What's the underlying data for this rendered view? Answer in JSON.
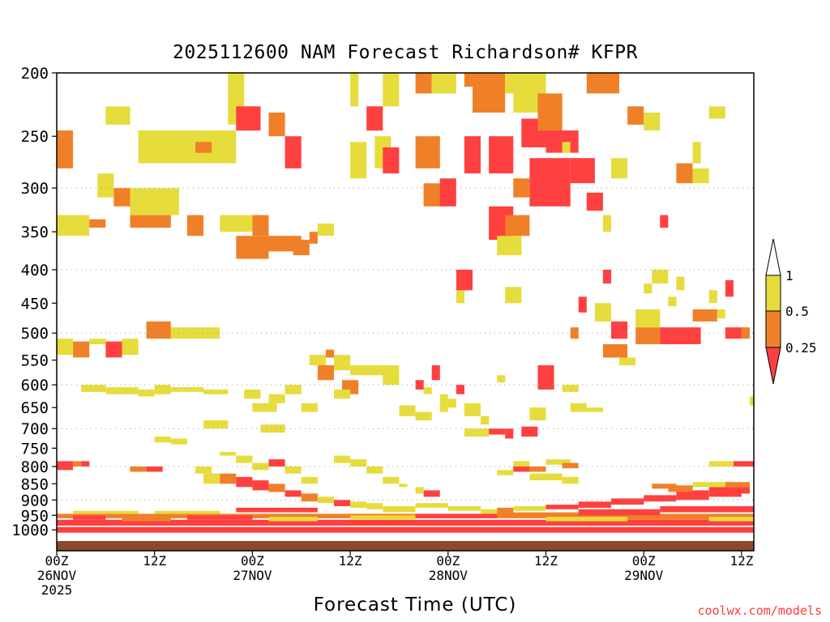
{
  "chart_data": {
    "type": "heatmap",
    "title": "2025112600 NAM Forecast Richardson# KFPR",
    "xlabel": "Forecast Time (UTC)",
    "ylabel": "",
    "y_scale": "log-pressure",
    "ylim": [
      1000,
      200
    ],
    "xlim_hours": [
      0,
      84
    ],
    "y_ticks": [
      200,
      250,
      300,
      350,
      400,
      450,
      500,
      550,
      600,
      650,
      700,
      750,
      800,
      850,
      900,
      950,
      1000
    ],
    "gridlines_at": [
      300,
      400,
      500,
      600,
      700,
      800,
      900
    ],
    "x_ticks": [
      {
        "hour": 0,
        "lines": [
          "00Z",
          "26NOV",
          "2025"
        ]
      },
      {
        "hour": 12,
        "lines": [
          "12Z"
        ]
      },
      {
        "hour": 24,
        "lines": [
          "00Z",
          "27NOV"
        ]
      },
      {
        "hour": 36,
        "lines": [
          "12Z"
        ]
      },
      {
        "hour": 48,
        "lines": [
          "00Z",
          "28NOV"
        ]
      },
      {
        "hour": 60,
        "lines": [
          "12Z"
        ]
      },
      {
        "hour": 72,
        "lines": [
          "00Z",
          "29NOV"
        ]
      },
      {
        "hour": 84,
        "lines": [
          "12Z"
        ]
      }
    ],
    "legend": {
      "placement": "right",
      "levels": [
        "0.25",
        "0.5",
        "1"
      ],
      "colors": [
        "#ff4040",
        "#f08028",
        "#e6dc3c"
      ],
      "bins": [
        "< 0.25",
        "0.25 - 0.5",
        "0.5 - 1",
        "> 1"
      ]
    },
    "colors": {
      "red": "#ff4040",
      "orange": "#f08028",
      "yellow": "#e6dc3c",
      "ground": "#8b4a2b"
    },
    "cells_note": "each cell: [start_hour, end_hour, top_hPa, bottom_hPa, class] (class r=<0.25, o=0.25-0.5, y=0.5-1)",
    "cells": [
      [
        21,
        23,
        200,
        240,
        "y"
      ],
      [
        26,
        28,
        230,
        250,
        "o"
      ],
      [
        28,
        30,
        250,
        280,
        "r"
      ],
      [
        22,
        25,
        225,
        245,
        "r"
      ],
      [
        6,
        9,
        225,
        240,
        "y"
      ],
      [
        10,
        16,
        245,
        275,
        "y"
      ],
      [
        16,
        22,
        245,
        275,
        "y"
      ],
      [
        17,
        19,
        255,
        265,
        "o"
      ],
      [
        0,
        2,
        245,
        280,
        "o"
      ],
      [
        5,
        7,
        285,
        310,
        "y"
      ],
      [
        7,
        9,
        300,
        320,
        "o"
      ],
      [
        11,
        12,
        305,
        315,
        "o"
      ],
      [
        9,
        15,
        300,
        330,
        "y"
      ],
      [
        0,
        4,
        330,
        355,
        "y"
      ],
      [
        4,
        6,
        335,
        345,
        "o"
      ],
      [
        9,
        14,
        330,
        345,
        "o"
      ],
      [
        16,
        18,
        330,
        355,
        "o"
      ],
      [
        20,
        24,
        330,
        350,
        "y"
      ],
      [
        22,
        26,
        355,
        385,
        "o"
      ],
      [
        24,
        26,
        330,
        355,
        "o"
      ],
      [
        26,
        30,
        355,
        375,
        "o"
      ],
      [
        29,
        31,
        360,
        380,
        "o"
      ],
      [
        31,
        32,
        350,
        365,
        "o"
      ],
      [
        32,
        34,
        340,
        355,
        "y"
      ],
      [
        36,
        37,
        200,
        225,
        "y"
      ],
      [
        38,
        40,
        225,
        245,
        "r"
      ],
      [
        40,
        42,
        200,
        225,
        "y"
      ],
      [
        36,
        38,
        255,
        290,
        "y"
      ],
      [
        39,
        41,
        250,
        280,
        "y"
      ],
      [
        40,
        42,
        260,
        285,
        "r"
      ],
      [
        44,
        47,
        250,
        280,
        "o"
      ],
      [
        44,
        46,
        200,
        215,
        "o"
      ],
      [
        46,
        49,
        200,
        215,
        "y"
      ],
      [
        45,
        48,
        295,
        320,
        "o"
      ],
      [
        47,
        49,
        290,
        320,
        "r"
      ],
      [
        50,
        52,
        250,
        285,
        "r"
      ],
      [
        50,
        52,
        200,
        210,
        "o"
      ],
      [
        51,
        55,
        200,
        230,
        "o"
      ],
      [
        53,
        56,
        250,
        285,
        "r"
      ],
      [
        55,
        57,
        200,
        215,
        "y"
      ],
      [
        56,
        60,
        200,
        230,
        "y"
      ],
      [
        57,
        60,
        235,
        260,
        "r"
      ],
      [
        55,
        57,
        335,
        350,
        "r"
      ],
      [
        53,
        56,
        320,
        360,
        "r"
      ],
      [
        54,
        57,
        355,
        380,
        "y"
      ],
      [
        55,
        58,
        330,
        355,
        "o"
      ],
      [
        58,
        63,
        270,
        320,
        "r"
      ],
      [
        56,
        58,
        290,
        310,
        "o"
      ],
      [
        57,
        59,
        210,
        230,
        "y"
      ],
      [
        59,
        62,
        215,
        245,
        "o"
      ],
      [
        60,
        64,
        245,
        265,
        "r"
      ],
      [
        63,
        66,
        270,
        295,
        "r"
      ],
      [
        65,
        69,
        200,
        215,
        "o"
      ],
      [
        70,
        72,
        225,
        240,
        "o"
      ],
      [
        72,
        74,
        230,
        245,
        "y"
      ],
      [
        76,
        78,
        275,
        295,
        "o"
      ],
      [
        78,
        80,
        280,
        295,
        "y"
      ],
      [
        80,
        82,
        225,
        235,
        "y"
      ],
      [
        78,
        79,
        255,
        275,
        "y"
      ],
      [
        74,
        75,
        330,
        345,
        "r"
      ],
      [
        67,
        68,
        330,
        350,
        "y"
      ],
      [
        68,
        70,
        270,
        290,
        "y"
      ],
      [
        65,
        67,
        305,
        325,
        "r"
      ],
      [
        62,
        63,
        255,
        265,
        "y"
      ],
      [
        49,
        51,
        400,
        430,
        "r"
      ],
      [
        49,
        50,
        430,
        450,
        "y"
      ],
      [
        55,
        57,
        425,
        450,
        "y"
      ],
      [
        59,
        61,
        560,
        610,
        "r"
      ],
      [
        67,
        68,
        400,
        420,
        "r"
      ],
      [
        66,
        68,
        450,
        480,
        "y"
      ],
      [
        68,
        70,
        480,
        510,
        "r"
      ],
      [
        67,
        70,
        520,
        545,
        "o"
      ],
      [
        69,
        71,
        545,
        560,
        "y"
      ],
      [
        71,
        74,
        460,
        490,
        "y"
      ],
      [
        71,
        74,
        490,
        520,
        "o"
      ],
      [
        74,
        79,
        490,
        520,
        "r"
      ],
      [
        78,
        81,
        460,
        480,
        "o"
      ],
      [
        81,
        82,
        460,
        475,
        "y"
      ],
      [
        82,
        84,
        490,
        510,
        "r"
      ],
      [
        84,
        85,
        490,
        510,
        "o"
      ],
      [
        82,
        83,
        415,
        440,
        "r"
      ],
      [
        80,
        81,
        430,
        450,
        "y"
      ],
      [
        76,
        77,
        410,
        430,
        "y"
      ],
      [
        73,
        75,
        400,
        420,
        "y"
      ],
      [
        75,
        76,
        440,
        455,
        "y"
      ],
      [
        72,
        73,
        420,
        435,
        "y"
      ],
      [
        63,
        64,
        490,
        510,
        "o"
      ],
      [
        64,
        65,
        440,
        465,
        "r"
      ],
      [
        0,
        2,
        510,
        540,
        "y"
      ],
      [
        2,
        4,
        515,
        545,
        "o"
      ],
      [
        4,
        6,
        510,
        520,
        "y"
      ],
      [
        6,
        8,
        515,
        545,
        "r"
      ],
      [
        8,
        10,
        510,
        540,
        "y"
      ],
      [
        11,
        14,
        490,
        505,
        "y"
      ],
      [
        11,
        14,
        480,
        510,
        "o"
      ],
      [
        14,
        20,
        490,
        510,
        "y"
      ],
      [
        34,
        36,
        540,
        570,
        "y"
      ],
      [
        32,
        34,
        560,
        590,
        "o"
      ],
      [
        31,
        33,
        540,
        560,
        "y"
      ],
      [
        33,
        34,
        530,
        545,
        "o"
      ],
      [
        35,
        37,
        590,
        620,
        "o"
      ],
      [
        34,
        36,
        610,
        630,
        "y"
      ],
      [
        36,
        41,
        560,
        580,
        "y"
      ],
      [
        40,
        42,
        560,
        600,
        "y"
      ],
      [
        44,
        45,
        590,
        610,
        "r"
      ],
      [
        45,
        46,
        605,
        620,
        "y"
      ],
      [
        46,
        47,
        560,
        590,
        "r"
      ],
      [
        47,
        48,
        620,
        640,
        "y"
      ],
      [
        48,
        49,
        630,
        650,
        "y"
      ],
      [
        47,
        48,
        640,
        660,
        "y"
      ],
      [
        42,
        44,
        645,
        670,
        "y"
      ],
      [
        44,
        46,
        660,
        680,
        "y"
      ],
      [
        49,
        50,
        600,
        620,
        "r"
      ],
      [
        50,
        52,
        640,
        670,
        "y"
      ],
      [
        52,
        53,
        670,
        690,
        "y"
      ],
      [
        54,
        55,
        580,
        595,
        "y"
      ],
      [
        50,
        53,
        700,
        720,
        "y"
      ],
      [
        53,
        55,
        700,
        715,
        "r"
      ],
      [
        55,
        56,
        700,
        725,
        "r"
      ],
      [
        57,
        59,
        695,
        720,
        "r"
      ],
      [
        58,
        60,
        650,
        680,
        "y"
      ],
      [
        62,
        64,
        600,
        615,
        "y"
      ],
      [
        63,
        65,
        640,
        660,
        "y"
      ],
      [
        65,
        67,
        650,
        660,
        "y"
      ],
      [
        3,
        6,
        600,
        615,
        "y"
      ],
      [
        6,
        10,
        605,
        620,
        "y"
      ],
      [
        10,
        12,
        610,
        625,
        "y"
      ],
      [
        12,
        14,
        600,
        620,
        "y"
      ],
      [
        14,
        18,
        605,
        615,
        "y"
      ],
      [
        18,
        21,
        610,
        620,
        "y"
      ],
      [
        23,
        25,
        610,
        630,
        "y"
      ],
      [
        24,
        27,
        640,
        660,
        "y"
      ],
      [
        26,
        28,
        620,
        640,
        "y"
      ],
      [
        28,
        30,
        600,
        620,
        "y"
      ],
      [
        18,
        21,
        680,
        700,
        "y"
      ],
      [
        25,
        28,
        690,
        710,
        "y"
      ],
      [
        30,
        32,
        640,
        660,
        "y"
      ],
      [
        85,
        86,
        625,
        645,
        "y"
      ],
      [
        12,
        14,
        720,
        735,
        "y"
      ],
      [
        14,
        16,
        725,
        740,
        "y"
      ],
      [
        0,
        2,
        785,
        810,
        "r"
      ],
      [
        2,
        3,
        785,
        800,
        "o"
      ],
      [
        3,
        4,
        785,
        800,
        "r"
      ],
      [
        9,
        11,
        800,
        815,
        "o"
      ],
      [
        11,
        13,
        800,
        815,
        "r"
      ],
      [
        17,
        19,
        800,
        820,
        "y"
      ],
      [
        18,
        20,
        820,
        850,
        "y"
      ],
      [
        20,
        22,
        820,
        850,
        "o"
      ],
      [
        22,
        24,
        830,
        860,
        "r"
      ],
      [
        24,
        26,
        840,
        870,
        "r"
      ],
      [
        26,
        28,
        850,
        875,
        "o"
      ],
      [
        28,
        30,
        870,
        890,
        "r"
      ],
      [
        30,
        32,
        880,
        905,
        "o"
      ],
      [
        32,
        34,
        890,
        910,
        "y"
      ],
      [
        34,
        36,
        900,
        920,
        "r"
      ],
      [
        36,
        38,
        905,
        925,
        "y"
      ],
      [
        38,
        40,
        910,
        930,
        "y"
      ],
      [
        40,
        44,
        920,
        940,
        "y"
      ],
      [
        44,
        48,
        910,
        925,
        "y"
      ],
      [
        48,
        52,
        920,
        935,
        "y"
      ],
      [
        52,
        54,
        930,
        945,
        "y"
      ],
      [
        54,
        56,
        925,
        945,
        "o"
      ],
      [
        56,
        60,
        920,
        935,
        "y"
      ],
      [
        60,
        64,
        915,
        930,
        "r"
      ],
      [
        64,
        68,
        905,
        925,
        "r"
      ],
      [
        68,
        72,
        895,
        915,
        "r"
      ],
      [
        72,
        76,
        885,
        905,
        "r"
      ],
      [
        76,
        80,
        870,
        900,
        "r"
      ],
      [
        80,
        84,
        860,
        890,
        "r"
      ],
      [
        84,
        85,
        855,
        880,
        "r"
      ],
      [
        75,
        78,
        855,
        875,
        "o"
      ],
      [
        78,
        82,
        845,
        860,
        "y"
      ],
      [
        82,
        85,
        845,
        860,
        "o"
      ],
      [
        83,
        86,
        785,
        800,
        "r"
      ],
      [
        80,
        83,
        785,
        800,
        "y"
      ],
      [
        73,
        76,
        850,
        865,
        "o"
      ],
      [
        60,
        63,
        780,
        795,
        "y"
      ],
      [
        62,
        64,
        790,
        805,
        "o"
      ],
      [
        58,
        60,
        800,
        815,
        "o"
      ],
      [
        58,
        62,
        820,
        840,
        "y"
      ],
      [
        62,
        64,
        830,
        850,
        "y"
      ],
      [
        56,
        58,
        785,
        800,
        "y"
      ],
      [
        56,
        58,
        800,
        815,
        "r"
      ],
      [
        54,
        56,
        810,
        825,
        "y"
      ],
      [
        45,
        47,
        870,
        890,
        "r"
      ],
      [
        44,
        45,
        860,
        880,
        "y"
      ],
      [
        42,
        43,
        850,
        860,
        "y"
      ],
      [
        20,
        22,
        760,
        770,
        "y"
      ],
      [
        22,
        24,
        770,
        790,
        "y"
      ],
      [
        24,
        26,
        790,
        810,
        "y"
      ],
      [
        26,
        28,
        780,
        800,
        "r"
      ],
      [
        28,
        30,
        800,
        820,
        "y"
      ],
      [
        30,
        32,
        830,
        850,
        "y"
      ],
      [
        34,
        36,
        770,
        790,
        "y"
      ],
      [
        36,
        38,
        780,
        800,
        "y"
      ],
      [
        38,
        40,
        800,
        820,
        "y"
      ],
      [
        40,
        42,
        830,
        850,
        "y"
      ],
      [
        0,
        86,
        990,
        1010,
        "r"
      ],
      [
        0,
        86,
        965,
        985,
        "r"
      ],
      [
        0,
        86,
        945,
        960,
        "o"
      ],
      [
        2,
        10,
        935,
        945,
        "y"
      ],
      [
        12,
        20,
        935,
        945,
        "y"
      ],
      [
        22,
        32,
        925,
        940,
        "r"
      ],
      [
        36,
        44,
        950,
        965,
        "y"
      ],
      [
        44,
        54,
        945,
        960,
        "r"
      ],
      [
        54,
        64,
        940,
        955,
        "o"
      ],
      [
        64,
        74,
        930,
        950,
        "r"
      ],
      [
        74,
        86,
        920,
        940,
        "r"
      ],
      [
        2,
        6,
        950,
        965,
        "r"
      ],
      [
        8,
        14,
        955,
        970,
        "o"
      ],
      [
        16,
        24,
        950,
        965,
        "r"
      ],
      [
        26,
        32,
        955,
        970,
        "y"
      ],
      [
        60,
        70,
        955,
        970,
        "y"
      ],
      [
        70,
        80,
        950,
        965,
        "o"
      ],
      [
        80,
        86,
        955,
        970,
        "y"
      ]
    ]
  },
  "credit": "coolwx.com/models"
}
